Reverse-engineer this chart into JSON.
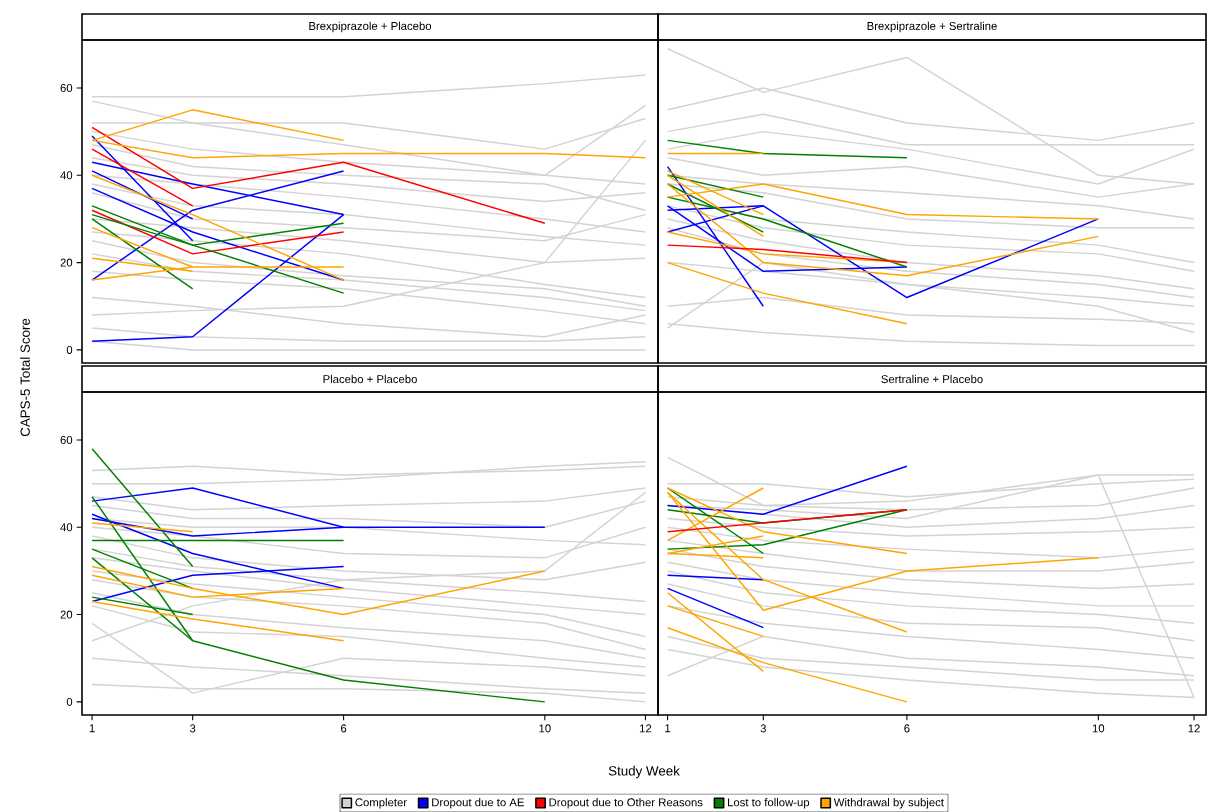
{
  "chart_data": [
    {
      "type": "line",
      "title": "Brexpiprazole + Placebo",
      "ylabel": "CAPS-5 Total Score",
      "xlim": [
        0.8,
        12.25
      ],
      "ylim": [
        -3,
        71
      ],
      "xticks": [
        1,
        3,
        6,
        10,
        12
      ],
      "yticks": [
        0,
        20,
        40,
        60
      ],
      "tick_labels": "y",
      "legend": "bottom",
      "series": [
        {
          "name": "Completer",
          "color": "#d3d3d3",
          "x": [
            1,
            3,
            6,
            10,
            12
          ],
          "values": [
            58,
            58,
            58,
            61,
            63
          ]
        },
        {
          "color": "#d3d3d3",
          "x": [
            1,
            3,
            6,
            10,
            12
          ],
          "values": [
            57,
            52,
            47,
            40,
            38
          ]
        },
        {
          "color": "#d3d3d3",
          "x": [
            1,
            3,
            6,
            10,
            12
          ],
          "values": [
            52,
            52,
            52,
            46,
            53
          ]
        },
        {
          "color": "#d3d3d3",
          "x": [
            1,
            3,
            6,
            10,
            12
          ],
          "values": [
            50,
            46,
            43,
            40,
            56
          ]
        },
        {
          "color": "#d3d3d3",
          "x": [
            1,
            3,
            6,
            10,
            12
          ],
          "values": [
            47,
            42,
            40,
            38,
            32
          ]
        },
        {
          "color": "#d3d3d3",
          "x": [
            1,
            3,
            6,
            10,
            12
          ],
          "values": [
            44,
            40,
            38,
            34,
            36
          ]
        },
        {
          "color": "#d3d3d3",
          "x": [
            1,
            3,
            6,
            10,
            12
          ],
          "values": [
            40,
            38,
            35,
            30,
            27
          ]
        },
        {
          "color": "#d3d3d3",
          "x": [
            1,
            3,
            6,
            10,
            12
          ],
          "values": [
            38,
            33,
            31,
            26,
            24
          ]
        },
        {
          "color": "#d3d3d3",
          "x": [
            1,
            3,
            6,
            10,
            12
          ],
          "values": [
            36,
            30,
            28,
            25,
            31
          ]
        },
        {
          "color": "#d3d3d3",
          "x": [
            1,
            3,
            6,
            10,
            12
          ],
          "values": [
            30,
            28,
            25,
            20,
            21
          ]
        },
        {
          "color": "#d3d3d3",
          "x": [
            1,
            3,
            6,
            10,
            12
          ],
          "values": [
            27,
            25,
            22,
            15,
            12
          ]
        },
        {
          "color": "#d3d3d3",
          "x": [
            1,
            3,
            6,
            10,
            12
          ],
          "values": [
            25,
            20,
            17,
            14,
            10
          ]
        },
        {
          "color": "#d3d3d3",
          "x": [
            1,
            3,
            6,
            10,
            12
          ],
          "values": [
            22,
            18,
            16,
            12,
            9
          ]
        },
        {
          "color": "#d3d3d3",
          "x": [
            1,
            3,
            6,
            10,
            12
          ],
          "values": [
            18,
            16,
            14,
            9,
            6
          ]
        },
        {
          "color": "#d3d3d3",
          "x": [
            1,
            3,
            6,
            10,
            12
          ],
          "values": [
            12,
            10,
            6,
            3,
            8
          ]
        },
        {
          "color": "#d3d3d3",
          "x": [
            1,
            3,
            6,
            10,
            12
          ],
          "values": [
            5,
            3,
            2,
            2,
            3
          ]
        },
        {
          "color": "#d3d3d3",
          "x": [
            1,
            3,
            6,
            10,
            12
          ],
          "values": [
            2,
            0,
            0,
            0,
            0
          ]
        },
        {
          "color": "#d3d3d3",
          "x": [
            1,
            3,
            6,
            10,
            12
          ],
          "values": [
            8,
            9,
            10,
            20,
            48
          ]
        },
        {
          "name": "Dropout due to AE",
          "color": "#0000ff",
          "x": [
            1,
            3
          ],
          "values": [
            49,
            25
          ]
        },
        {
          "color": "#0000ff",
          "x": [
            1,
            3,
            6
          ],
          "values": [
            43,
            38,
            31
          ]
        },
        {
          "color": "#0000ff",
          "x": [
            1,
            3
          ],
          "values": [
            41,
            30
          ]
        },
        {
          "color": "#0000ff",
          "x": [
            1,
            3,
            6
          ],
          "values": [
            37,
            27,
            16
          ]
        },
        {
          "color": "#0000ff",
          "x": [
            1,
            3,
            6
          ],
          "values": [
            16,
            32,
            41
          ]
        },
        {
          "color": "#0000ff",
          "x": [
            1,
            3,
            6
          ],
          "values": [
            2,
            3,
            31
          ]
        },
        {
          "name": "Dropout due to Other Reasons",
          "color": "#ff0000",
          "x": [
            1,
            3,
            6,
            10
          ],
          "values": [
            51,
            37,
            43,
            29
          ]
        },
        {
          "color": "#ff0000",
          "x": [
            1,
            3
          ],
          "values": [
            46,
            33
          ]
        },
        {
          "color": "#ff0000",
          "x": [
            1,
            3,
            6
          ],
          "values": [
            32,
            22,
            27
          ]
        },
        {
          "name": "Lost to follow-up",
          "color": "#008000",
          "x": [
            1,
            3,
            6
          ],
          "values": [
            33,
            24,
            13
          ]
        },
        {
          "color": "#008000",
          "x": [
            1,
            3,
            6
          ],
          "values": [
            31,
            24,
            29
          ]
        },
        {
          "color": "#008000",
          "x": [
            1,
            3
          ],
          "values": [
            30,
            14
          ]
        },
        {
          "name": "Withdrawal by subject",
          "color": "#ffa500",
          "x": [
            1,
            3,
            6
          ],
          "values": [
            48,
            55,
            48
          ]
        },
        {
          "color": "#ffa500",
          "x": [
            1,
            3,
            6,
            10,
            12
          ],
          "values": [
            48,
            44,
            45,
            45,
            44
          ]
        },
        {
          "color": "#ffa500",
          "x": [
            1,
            3,
            6
          ],
          "values": [
            40,
            31,
            16
          ]
        },
        {
          "color": "#ffa500",
          "x": [
            1,
            3
          ],
          "values": [
            28,
            19
          ]
        },
        {
          "color": "#ffa500",
          "x": [
            1,
            3
          ],
          "values": [
            21,
            18
          ]
        },
        {
          "color": "#ffa500",
          "x": [
            1,
            3,
            6
          ],
          "values": [
            16,
            19,
            19
          ]
        }
      ]
    },
    {
      "type": "line",
      "title": "Brexpiprazole + Sertraline",
      "xlim": [
        0.8,
        12.25
      ],
      "ylim": [
        -3,
        71
      ],
      "xticks": [
        1,
        3,
        6,
        10,
        12
      ],
      "yticks": [
        0,
        20,
        40,
        60
      ],
      "tick_labels": false,
      "series": [
        {
          "color": "#d3d3d3",
          "x": [
            1,
            3,
            6,
            10,
            12
          ],
          "values": [
            69,
            59,
            67,
            40,
            38
          ]
        },
        {
          "color": "#d3d3d3",
          "x": [
            1,
            3,
            6,
            10,
            12
          ],
          "values": [
            55,
            60,
            52,
            48,
            52
          ]
        },
        {
          "color": "#d3d3d3",
          "x": [
            1,
            3,
            6,
            10,
            12
          ],
          "values": [
            50,
            54,
            47,
            47,
            47
          ]
        },
        {
          "color": "#d3d3d3",
          "x": [
            1,
            3,
            6,
            10,
            12
          ],
          "values": [
            46,
            50,
            46,
            38,
            46
          ]
        },
        {
          "color": "#d3d3d3",
          "x": [
            1,
            3,
            6,
            10,
            12
          ],
          "values": [
            44,
            40,
            42,
            35,
            38
          ]
        },
        {
          "color": "#d3d3d3",
          "x": [
            1,
            3,
            6,
            10,
            12
          ],
          "values": [
            40,
            38,
            36,
            33,
            30
          ]
        },
        {
          "color": "#d3d3d3",
          "x": [
            1,
            3,
            6,
            10,
            12
          ],
          "values": [
            38,
            36,
            30,
            28,
            28
          ]
        },
        {
          "color": "#d3d3d3",
          "x": [
            1,
            3,
            6,
            10,
            12
          ],
          "values": [
            35,
            30,
            27,
            24,
            20
          ]
        },
        {
          "color": "#d3d3d3",
          "x": [
            1,
            3,
            6,
            10,
            12
          ],
          "values": [
            33,
            28,
            24,
            22,
            18
          ]
        },
        {
          "color": "#d3d3d3",
          "x": [
            1,
            3,
            6,
            10,
            12
          ],
          "values": [
            30,
            25,
            20,
            17,
            14
          ]
        },
        {
          "color": "#d3d3d3",
          "x": [
            1,
            3,
            6,
            10,
            12
          ],
          "values": [
            28,
            22,
            18,
            15,
            12
          ]
        },
        {
          "color": "#d3d3d3",
          "x": [
            1,
            3,
            6,
            10,
            12
          ],
          "values": [
            20,
            18,
            15,
            12,
            10
          ]
        },
        {
          "color": "#d3d3d3",
          "x": [
            1,
            3,
            6,
            10,
            12
          ],
          "values": [
            10,
            12,
            8,
            7,
            6
          ]
        },
        {
          "color": "#d3d3d3",
          "x": [
            1,
            3,
            6,
            10,
            12
          ],
          "values": [
            6,
            4,
            2,
            1,
            1
          ]
        },
        {
          "color": "#d3d3d3",
          "x": [
            1,
            3,
            6,
            10,
            12
          ],
          "values": [
            5,
            20,
            15,
            10,
            4
          ]
        },
        {
          "color": "#0000ff",
          "x": [
            1,
            3
          ],
          "values": [
            42,
            10
          ]
        },
        {
          "color": "#0000ff",
          "x": [
            1,
            3,
            6,
            10
          ],
          "values": [
            32,
            33,
            12,
            30
          ]
        },
        {
          "color": "#0000ff",
          "x": [
            1,
            3,
            6
          ],
          "values": [
            33,
            18,
            19
          ]
        },
        {
          "color": "#0000ff",
          "x": [
            1,
            3
          ],
          "values": [
            27,
            33
          ]
        },
        {
          "color": "#008000",
          "x": [
            1,
            3,
            6
          ],
          "values": [
            48,
            45,
            44
          ]
        },
        {
          "color": "#008000",
          "x": [
            1,
            3
          ],
          "values": [
            40,
            35
          ]
        },
        {
          "color": "#008000",
          "x": [
            1,
            3
          ],
          "values": [
            38,
            27
          ]
        },
        {
          "color": "#008000",
          "x": [
            1,
            3,
            6
          ],
          "values": [
            35,
            30,
            19
          ]
        },
        {
          "color": "#ffa500",
          "x": [
            1,
            3
          ],
          "values": [
            45,
            45
          ]
        },
        {
          "color": "#ffa500",
          "x": [
            1,
            3,
            6,
            10
          ],
          "values": [
            35,
            38,
            31,
            30
          ]
        },
        {
          "color": "#ffa500",
          "x": [
            1,
            3
          ],
          "values": [
            41,
            31
          ]
        },
        {
          "color": "#ffa500",
          "x": [
            1,
            3
          ],
          "values": [
            40,
            26
          ]
        },
        {
          "color": "#ffa500",
          "x": [
            1,
            3,
            6,
            10
          ],
          "values": [
            38,
            20,
            17,
            26
          ]
        },
        {
          "color": "#ffa500",
          "x": [
            1,
            3,
            6
          ],
          "values": [
            27,
            22,
            20
          ]
        },
        {
          "color": "#ffa500",
          "x": [
            1,
            3,
            6
          ],
          "values": [
            20,
            13,
            6
          ]
        },
        {
          "color": "#ff0000",
          "x": [
            1,
            3,
            6
          ],
          "values": [
            24,
            23,
            20
          ]
        }
      ]
    },
    {
      "type": "line",
      "title": "Placebo + Placebo",
      "xlabel": "Study Week",
      "xlim": [
        0.8,
        12.25
      ],
      "ylim": [
        -3,
        71
      ],
      "xticks": [
        1,
        3,
        6,
        10,
        12
      ],
      "yticks": [
        0,
        20,
        40,
        60
      ],
      "series": [
        {
          "color": "#d3d3d3",
          "x": [
            1,
            3,
            6,
            10,
            12
          ],
          "values": [
            53,
            54,
            52,
            53,
            54
          ]
        },
        {
          "color": "#d3d3d3",
          "x": [
            1,
            3,
            6,
            10,
            12
          ],
          "values": [
            50,
            50,
            51,
            54,
            55
          ]
        },
        {
          "color": "#d3d3d3",
          "x": [
            1,
            3,
            6,
            10,
            12
          ],
          "values": [
            47,
            44,
            45,
            46,
            49
          ]
        },
        {
          "color": "#d3d3d3",
          "x": [
            1,
            3,
            6,
            10,
            12
          ],
          "values": [
            45,
            42,
            42,
            40,
            46
          ]
        },
        {
          "color": "#d3d3d3",
          "x": [
            1,
            3,
            6,
            10,
            12
          ],
          "values": [
            42,
            40,
            40,
            37,
            36
          ]
        },
        {
          "color": "#d3d3d3",
          "x": [
            1,
            3,
            6,
            10,
            12
          ],
          "values": [
            40,
            38,
            34,
            33,
            40
          ]
        },
        {
          "color": "#d3d3d3",
          "x": [
            1,
            3,
            6,
            10,
            12
          ],
          "values": [
            38,
            33,
            30,
            28,
            32
          ]
        },
        {
          "color": "#d3d3d3",
          "x": [
            1,
            3,
            6,
            10,
            12
          ],
          "values": [
            35,
            31,
            28,
            25,
            23
          ]
        },
        {
          "color": "#d3d3d3",
          "x": [
            1,
            3,
            6,
            10,
            12
          ],
          "values": [
            33,
            30,
            26,
            22,
            20
          ]
        },
        {
          "color": "#d3d3d3",
          "x": [
            1,
            3,
            6,
            10,
            12
          ],
          "values": [
            30,
            27,
            24,
            20,
            15
          ]
        },
        {
          "color": "#d3d3d3",
          "x": [
            1,
            3,
            6,
            10,
            12
          ],
          "values": [
            28,
            24,
            22,
            18,
            12
          ]
        },
        {
          "color": "#d3d3d3",
          "x": [
            1,
            3,
            6,
            10,
            12
          ],
          "values": [
            25,
            20,
            17,
            14,
            10
          ]
        },
        {
          "color": "#d3d3d3",
          "x": [
            1,
            3,
            6,
            10,
            12
          ],
          "values": [
            22,
            16,
            15,
            10,
            8
          ]
        },
        {
          "color": "#d3d3d3",
          "x": [
            1,
            3,
            6,
            10,
            12
          ],
          "values": [
            18,
            2,
            10,
            8,
            6
          ]
        },
        {
          "color": "#d3d3d3",
          "x": [
            1,
            3,
            6,
            10,
            12
          ],
          "values": [
            10,
            8,
            6,
            3,
            2
          ]
        },
        {
          "color": "#d3d3d3",
          "x": [
            1,
            3,
            6,
            10,
            12
          ],
          "values": [
            4,
            3,
            3,
            2,
            0
          ]
        },
        {
          "color": "#d3d3d3",
          "x": [
            1,
            3,
            6,
            10,
            12
          ],
          "values": [
            14,
            22,
            28,
            30,
            48
          ]
        },
        {
          "color": "#0000ff",
          "x": [
            1,
            3,
            6
          ],
          "values": [
            46,
            49,
            40
          ]
        },
        {
          "color": "#0000ff",
          "x": [
            1,
            3,
            6,
            10
          ],
          "values": [
            42,
            38,
            40,
            40
          ]
        },
        {
          "color": "#0000ff",
          "x": [
            1,
            3,
            6
          ],
          "values": [
            43,
            34,
            26
          ]
        },
        {
          "color": "#0000ff",
          "x": [
            1,
            3,
            6
          ],
          "values": [
            23,
            29,
            31
          ]
        },
        {
          "color": "#008000",
          "x": [
            1,
            3
          ],
          "values": [
            58,
            31
          ]
        },
        {
          "color": "#008000",
          "x": [
            1,
            3,
            6,
            10
          ],
          "values": [
            47,
            14,
            5,
            0
          ]
        },
        {
          "color": "#008000",
          "x": [
            1,
            3,
            6
          ],
          "values": [
            37,
            37,
            37
          ]
        },
        {
          "color": "#008000",
          "x": [
            1,
            3
          ],
          "values": [
            35,
            26
          ]
        },
        {
          "color": "#008000",
          "x": [
            1,
            3
          ],
          "values": [
            33,
            14
          ]
        },
        {
          "color": "#008000",
          "x": [
            1,
            3
          ],
          "values": [
            24,
            20
          ]
        },
        {
          "color": "#ffa500",
          "x": [
            1,
            3
          ],
          "values": [
            41,
            39
          ]
        },
        {
          "color": "#ffa500",
          "x": [
            1,
            3,
            6,
            10
          ],
          "values": [
            31,
            26,
            20,
            30
          ]
        },
        {
          "color": "#ffa500",
          "x": [
            1,
            3,
            6
          ],
          "values": [
            29,
            24,
            26
          ]
        },
        {
          "color": "#ffa500",
          "x": [
            1,
            3,
            6
          ],
          "values": [
            23,
            19,
            14
          ]
        }
      ]
    },
    {
      "type": "line",
      "title": "Sertraline + Placebo",
      "xlim": [
        0.8,
        12.25
      ],
      "ylim": [
        -3,
        71
      ],
      "xticks": [
        1,
        3,
        6,
        10,
        12
      ],
      "yticks": [
        0,
        20,
        40,
        60
      ],
      "tick_labels": "x",
      "series": [
        {
          "color": "#d3d3d3",
          "x": [
            1,
            3,
            6,
            10,
            12
          ],
          "values": [
            56,
            45,
            46,
            52,
            52
          ]
        },
        {
          "color": "#d3d3d3",
          "x": [
            1,
            3,
            6,
            10,
            12
          ],
          "values": [
            50,
            50,
            47,
            50,
            51
          ]
        },
        {
          "color": "#d3d3d3",
          "x": [
            1,
            3,
            6,
            10,
            12
          ],
          "values": [
            47,
            45,
            44,
            45,
            49
          ]
        },
        {
          "color": "#d3d3d3",
          "x": [
            1,
            3,
            6,
            10,
            12
          ],
          "values": [
            45,
            43,
            40,
            42,
            45
          ]
        },
        {
          "color": "#d3d3d3",
          "x": [
            1,
            3,
            6,
            10,
            12
          ],
          "values": [
            42,
            40,
            38,
            39,
            40
          ]
        },
        {
          "color": "#d3d3d3",
          "x": [
            1,
            3,
            6,
            10,
            12
          ],
          "values": [
            40,
            37,
            35,
            33,
            35
          ]
        },
        {
          "color": "#d3d3d3",
          "x": [
            1,
            3,
            6,
            10,
            12
          ],
          "values": [
            37,
            34,
            30,
            30,
            32
          ]
        },
        {
          "color": "#d3d3d3",
          "x": [
            1,
            3,
            6,
            10,
            12
          ],
          "values": [
            35,
            31,
            28,
            26,
            27
          ]
        },
        {
          "color": "#d3d3d3",
          "x": [
            1,
            3,
            6,
            10,
            12
          ],
          "values": [
            32,
            28,
            25,
            22,
            22
          ]
        },
        {
          "color": "#d3d3d3",
          "x": [
            1,
            3,
            6,
            10,
            12
          ],
          "values": [
            30,
            25,
            22,
            20,
            18
          ]
        },
        {
          "color": "#d3d3d3",
          "x": [
            1,
            3,
            6,
            10,
            12
          ],
          "values": [
            27,
            22,
            18,
            17,
            14
          ]
        },
        {
          "color": "#d3d3d3",
          "x": [
            1,
            3,
            6,
            10,
            12
          ],
          "values": [
            22,
            18,
            15,
            12,
            10
          ]
        },
        {
          "color": "#d3d3d3",
          "x": [
            1,
            3,
            6,
            10,
            12
          ],
          "values": [
            15,
            10,
            8,
            5,
            5
          ]
        },
        {
          "color": "#d3d3d3",
          "x": [
            1,
            3,
            6,
            10,
            12
          ],
          "values": [
            6,
            15,
            10,
            8,
            6
          ]
        },
        {
          "color": "#d3d3d3",
          "x": [
            1,
            3,
            6,
            10,
            12
          ],
          "values": [
            12,
            8,
            5,
            2,
            1
          ]
        },
        {
          "color": "#d3d3d3",
          "x": [
            1,
            3,
            6,
            10,
            12
          ],
          "values": [
            45,
            44,
            42,
            52,
            1
          ]
        },
        {
          "color": "#0000ff",
          "x": [
            1,
            3,
            6
          ],
          "values": [
            45,
            43,
            54
          ]
        },
        {
          "color": "#0000ff",
          "x": [
            1,
            3
          ],
          "values": [
            29,
            28
          ]
        },
        {
          "color": "#0000ff",
          "x": [
            1,
            3
          ],
          "values": [
            26,
            17
          ]
        },
        {
          "color": "#008000",
          "x": [
            1,
            3,
            6
          ],
          "values": [
            44,
            41,
            44
          ]
        },
        {
          "color": "#008000",
          "x": [
            1,
            3,
            6
          ],
          "values": [
            35,
            36,
            44
          ]
        },
        {
          "color": "#008000",
          "x": [
            1,
            3
          ],
          "values": [
            49,
            34
          ]
        },
        {
          "color": "#ffa500",
          "x": [
            1,
            3,
            6
          ],
          "values": [
            49,
            39,
            34
          ]
        },
        {
          "color": "#ffa500",
          "x": [
            1,
            3
          ],
          "values": [
            37,
            49
          ]
        },
        {
          "color": "#ffa500",
          "x": [
            1,
            3
          ],
          "values": [
            34,
            38
          ]
        },
        {
          "color": "#ffa500",
          "x": [
            1,
            3
          ],
          "values": [
            34,
            33
          ]
        },
        {
          "color": "#ffa500",
          "x": [
            1,
            3,
            6
          ],
          "values": [
            48,
            28,
            16
          ]
        },
        {
          "color": "#ffa500",
          "x": [
            1,
            3,
            6,
            10
          ],
          "values": [
            48,
            21,
            30,
            33
          ]
        },
        {
          "color": "#ffa500",
          "x": [
            1,
            3
          ],
          "values": [
            25,
            7
          ]
        },
        {
          "color": "#ffa500",
          "x": [
            1,
            3
          ],
          "values": [
            22,
            15
          ]
        },
        {
          "color": "#ffa500",
          "x": [
            1,
            3,
            6
          ],
          "values": [
            17,
            9,
            0
          ]
        },
        {
          "color": "#ff0000",
          "x": [
            1,
            3,
            6
          ],
          "values": [
            39,
            41,
            44
          ]
        }
      ]
    }
  ]
}
